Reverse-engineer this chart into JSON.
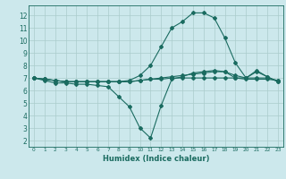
{
  "title": "",
  "xlabel": "Humidex (Indice chaleur)",
  "bg_color": "#cce8ec",
  "grid_color": "#aacccc",
  "line_color": "#1a6b60",
  "xlim": [
    -0.5,
    23.5
  ],
  "ylim": [
    1.5,
    12.8
  ],
  "xticks": [
    0,
    1,
    2,
    3,
    4,
    5,
    6,
    7,
    8,
    9,
    10,
    11,
    12,
    13,
    14,
    15,
    16,
    17,
    18,
    19,
    20,
    21,
    22,
    23
  ],
  "yticks": [
    2,
    3,
    4,
    5,
    6,
    7,
    8,
    9,
    10,
    11,
    12
  ],
  "series": [
    {
      "x": [
        0,
        1,
        2,
        3,
        4,
        5,
        6,
        7,
        8,
        9,
        10,
        11,
        12,
        13,
        14,
        15,
        16,
        17,
        18,
        19,
        20,
        21,
        22,
        23
      ],
      "y": [
        7.0,
        6.8,
        6.6,
        6.6,
        6.5,
        6.5,
        6.4,
        6.3,
        5.5,
        4.7,
        3.0,
        2.2,
        4.8,
        6.9,
        7.1,
        7.4,
        7.5,
        7.6,
        7.5,
        7.0,
        7.0,
        7.5,
        7.1,
        6.7
      ]
    },
    {
      "x": [
        0,
        1,
        2,
        3,
        4,
        5,
        6,
        7,
        8,
        9,
        10,
        11,
        12,
        13,
        14,
        15,
        16,
        17,
        18,
        19,
        20,
        21,
        22,
        23
      ],
      "y": [
        7.0,
        6.9,
        6.8,
        6.7,
        6.7,
        6.7,
        6.7,
        6.7,
        6.7,
        6.7,
        6.8,
        6.9,
        7.0,
        7.1,
        7.2,
        7.3,
        7.4,
        7.5,
        7.5,
        7.2,
        7.0,
        7.0,
        7.0,
        6.8
      ]
    },
    {
      "x": [
        0,
        1,
        2,
        3,
        4,
        5,
        6,
        7,
        8,
        9,
        10,
        11,
        12,
        13,
        14,
        15,
        16,
        17,
        18,
        19,
        20,
        21,
        22,
        23
      ],
      "y": [
        7.0,
        6.9,
        6.8,
        6.7,
        6.7,
        6.7,
        6.7,
        6.7,
        6.7,
        6.8,
        7.2,
        8.0,
        9.5,
        11.0,
        11.5,
        12.2,
        12.2,
        11.8,
        10.2,
        8.2,
        7.0,
        7.6,
        7.1,
        6.7
      ]
    },
    {
      "x": [
        0,
        1,
        2,
        3,
        4,
        5,
        6,
        7,
        8,
        9,
        10,
        11,
        12,
        13,
        14,
        15,
        16,
        17,
        18,
        19,
        20,
        21,
        22,
        23
      ],
      "y": [
        7.0,
        6.9,
        6.8,
        6.7,
        6.7,
        6.7,
        6.7,
        6.7,
        6.7,
        6.7,
        6.8,
        6.9,
        6.9,
        7.0,
        7.0,
        7.0,
        7.0,
        7.0,
        7.0,
        7.0,
        6.9,
        6.9,
        6.9,
        6.8
      ]
    }
  ]
}
